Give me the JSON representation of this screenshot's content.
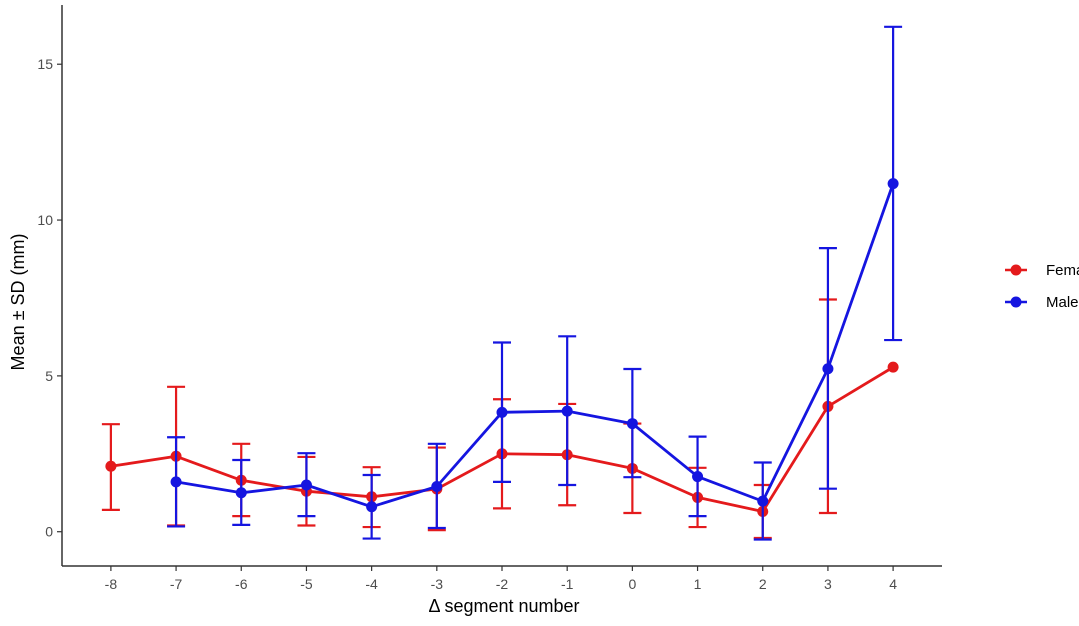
{
  "chart_data": {
    "type": "line",
    "title": "",
    "xlabel": "Δ segment number",
    "ylabel": "Mean ± SD (mm)",
    "x": [
      -8,
      -7,
      -6,
      -5,
      -4,
      -3,
      -2,
      -1,
      0,
      1,
      2,
      3,
      4
    ],
    "xlim": [
      -8.75,
      4.75
    ],
    "ylim": [
      -1.1,
      16.9
    ],
    "yticks": [
      0,
      5,
      10,
      15
    ],
    "grid": false,
    "legend_position": "right",
    "series": [
      {
        "name": "Female",
        "color": "#e41a1c",
        "points": [
          {
            "x": -8,
            "y": 2.1,
            "lo": 0.7,
            "hi": 3.45
          },
          {
            "x": -7,
            "y": 2.42,
            "lo": 0.2,
            "hi": 4.65
          },
          {
            "x": -6,
            "y": 1.65,
            "lo": 0.5,
            "hi": 2.82
          },
          {
            "x": -5,
            "y": 1.3,
            "lo": 0.2,
            "hi": 2.4
          },
          {
            "x": -4,
            "y": 1.12,
            "lo": 0.15,
            "hi": 2.07
          },
          {
            "x": -3,
            "y": 1.37,
            "lo": 0.05,
            "hi": 2.7
          },
          {
            "x": -2,
            "y": 2.5,
            "lo": 0.75,
            "hi": 4.25
          },
          {
            "x": -1,
            "y": 2.47,
            "lo": 0.85,
            "hi": 4.1
          },
          {
            "x": 0,
            "y": 2.03,
            "lo": 0.6,
            "hi": 3.47
          },
          {
            "x": 1,
            "y": 1.1,
            "lo": 0.15,
            "hi": 2.05
          },
          {
            "x": 2,
            "y": 0.65,
            "lo": -0.2,
            "hi": 1.5
          },
          {
            "x": 3,
            "y": 4.02,
            "lo": 0.6,
            "hi": 7.45
          },
          {
            "x": 4,
            "y": 5.28
          }
        ]
      },
      {
        "name": "Male",
        "color": "#1515e0",
        "points": [
          {
            "x": -7,
            "y": 1.6,
            "lo": 0.17,
            "hi": 3.03
          },
          {
            "x": -6,
            "y": 1.25,
            "lo": 0.22,
            "hi": 2.3
          },
          {
            "x": -5,
            "y": 1.5,
            "lo": 0.5,
            "hi": 2.52
          },
          {
            "x": -4,
            "y": 0.8,
            "lo": -0.22,
            "hi": 1.82
          },
          {
            "x": -3,
            "y": 1.45,
            "lo": 0.12,
            "hi": 2.82
          },
          {
            "x": -2,
            "y": 3.83,
            "lo": 1.6,
            "hi": 6.07
          },
          {
            "x": -1,
            "y": 3.87,
            "lo": 1.5,
            "hi": 6.27
          },
          {
            "x": 0,
            "y": 3.47,
            "lo": 1.75,
            "hi": 5.22
          },
          {
            "x": 1,
            "y": 1.77,
            "lo": 0.5,
            "hi": 3.05
          },
          {
            "x": 2,
            "y": 0.98,
            "lo": -0.25,
            "hi": 2.22
          },
          {
            "x": 3,
            "y": 5.23,
            "lo": 1.38,
            "hi": 9.1
          },
          {
            "x": 4,
            "y": 11.17,
            "lo": 6.15,
            "hi": 16.2
          }
        ]
      }
    ]
  }
}
